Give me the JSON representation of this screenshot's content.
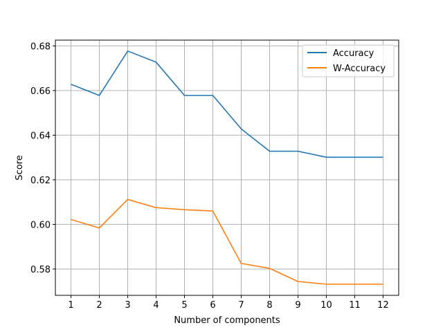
{
  "chart_data": {
    "type": "line",
    "title": "",
    "xlabel": "Number of components",
    "ylabel": "Score",
    "x": [
      1,
      2,
      3,
      4,
      5,
      6,
      7,
      8,
      9,
      10,
      11,
      12
    ],
    "xticks": [
      "1",
      "2",
      "3",
      "4",
      "5",
      "6",
      "7",
      "8",
      "9",
      "10",
      "11",
      "12"
    ],
    "xlim": [
      0.45,
      12.55
    ],
    "ylim": [
      0.5682,
      0.6826
    ],
    "yticks": [
      0.58,
      0.6,
      0.62,
      0.64,
      0.66,
      0.68
    ],
    "ytick_labels": [
      "0.58",
      "0.60",
      "0.62",
      "0.64",
      "0.66",
      "0.68"
    ],
    "grid": true,
    "legend_position": "top-right",
    "series": [
      {
        "name": "Accuracy",
        "color": "#1f77b4",
        "values": [
          0.6628,
          0.6578,
          0.6777,
          0.6727,
          0.6578,
          0.6578,
          0.6428,
          0.6328,
          0.6328,
          0.6301,
          0.6301,
          0.6301
        ]
      },
      {
        "name": "W-Accuracy",
        "color": "#ff7f0e",
        "values": [
          0.6022,
          0.5984,
          0.6112,
          0.6075,
          0.6066,
          0.606,
          0.5825,
          0.5803,
          0.5744,
          0.5732,
          0.5732,
          0.5732
        ]
      }
    ]
  }
}
